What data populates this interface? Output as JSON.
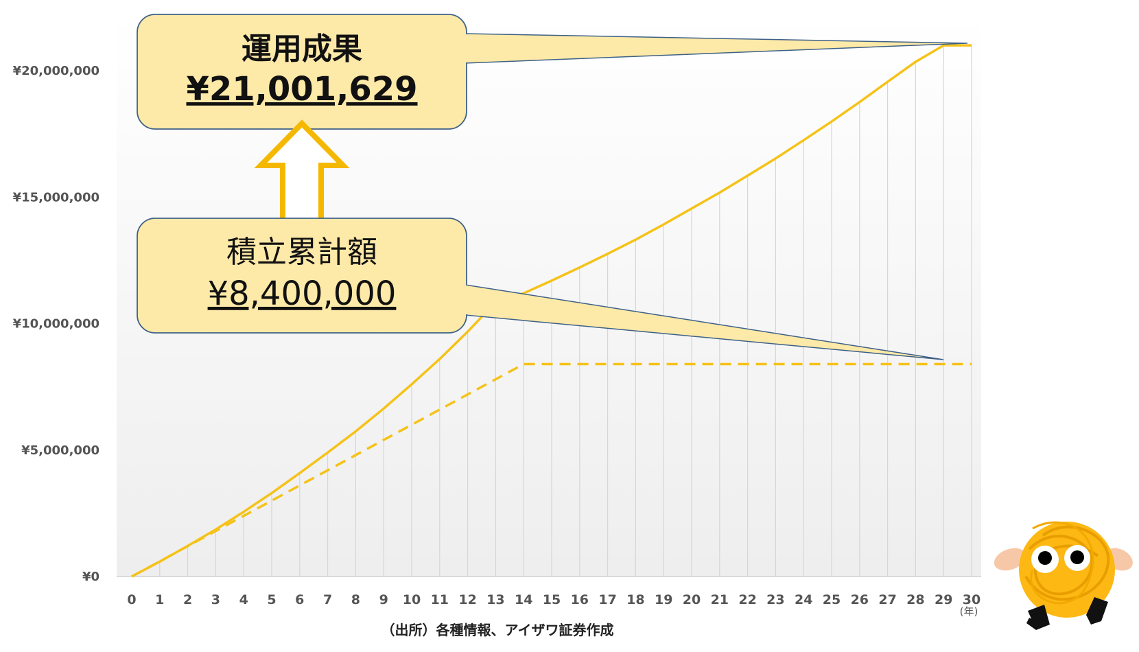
{
  "chart_data": {
    "type": "line",
    "x": [
      0,
      1,
      2,
      3,
      4,
      5,
      6,
      7,
      8,
      9,
      10,
      11,
      12,
      13,
      14,
      15,
      16,
      17,
      18,
      19,
      20,
      21,
      22,
      23,
      24,
      25,
      26,
      27,
      28,
      29,
      30
    ],
    "x_tick_labels": [
      "0",
      "1",
      "2",
      "3",
      "4",
      "5",
      "6",
      "7",
      "8",
      "9",
      "10",
      "11",
      "12",
      "13",
      "14",
      "15",
      "16",
      "17",
      "18",
      "19",
      "20",
      "21",
      "22",
      "23",
      "24",
      "25",
      "26",
      "27",
      "28",
      "29",
      "30"
    ],
    "x_unit": "(年)",
    "y_tick_labels": [
      "¥0",
      "¥5,000,000",
      "¥10,000,000",
      "¥15,000,000",
      "¥20,000,000"
    ],
    "y_ticks": [
      0,
      5000000,
      10000000,
      15000000,
      20000000
    ],
    "ylim": [
      0,
      21000000
    ],
    "grid": "vertical",
    "series": [
      {
        "style": "solid",
        "color": "#F5C218",
        "values": [
          0,
          590000,
          1210000,
          1860000,
          2560000,
          3300000,
          4090000,
          4900000,
          5740000,
          6640000,
          7600000,
          8600000,
          9680000,
          10850000,
          11200000,
          11700000,
          12220000,
          12760000,
          13320000,
          13920000,
          14550000,
          15180000,
          15850000,
          16530000,
          17250000,
          17990000,
          18760000,
          19560000,
          20350000,
          21001629,
          21001629
        ]
      },
      {
        "style": "dashed",
        "color": "#F5C218",
        "values": [
          0,
          600000,
          1200000,
          1800000,
          2400000,
          3000000,
          3600000,
          4200000,
          4800000,
          5400000,
          6000000,
          6600000,
          7200000,
          7800000,
          8400000,
          8400000,
          8400000,
          8400000,
          8400000,
          8400000,
          8400000,
          8400000,
          8400000,
          8400000,
          8400000,
          8400000,
          8400000,
          8400000,
          8400000,
          8400000,
          8400000
        ]
      }
    ]
  },
  "callouts": {
    "result": {
      "title": "運用成果",
      "value": "¥21,001,629",
      "point_year": 30,
      "point_value": 21001629
    },
    "accumulated": {
      "title": "積立累計額",
      "value": "¥8,400,000",
      "point_year": 30,
      "point_value": 8400000
    }
  },
  "source_note": "（出所）各種情報、アイザワ証券作成",
  "colors": {
    "line": "#F5C218",
    "callout_fill": "#FDE9A8",
    "callout_stroke": "#3E6187",
    "arrow": "#F5B800"
  }
}
